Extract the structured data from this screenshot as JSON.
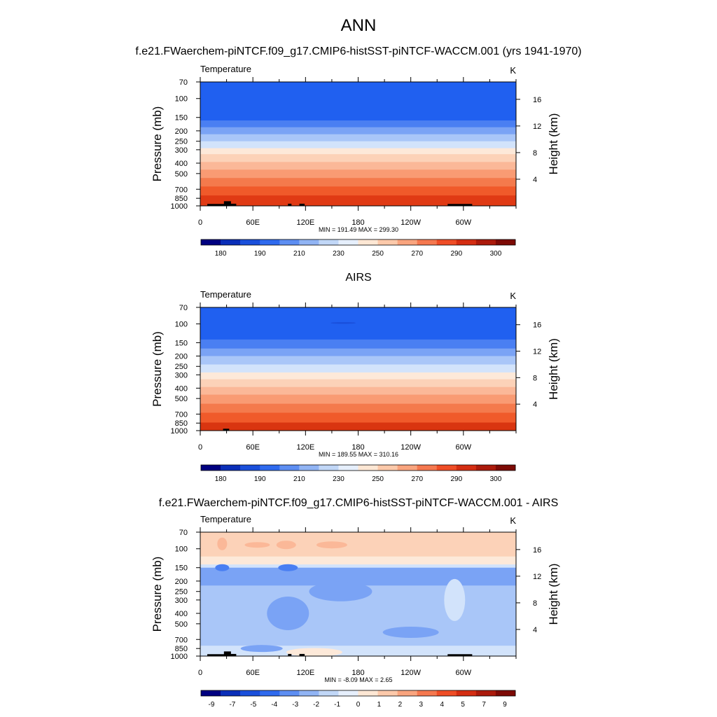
{
  "page_title": "ANN",
  "chart_data": [
    {
      "type": "heatmap",
      "title": "f.e21.FWaerchem-piNTCF.f09_g17.CMIP6-histSST-piNTCF-WACCM.001 (yrs 1941-1970)",
      "variable": "Temperature",
      "units": "K",
      "xlabel": "",
      "ylabel": "Pressure (mb)",
      "ylabel_right": "Height (km)",
      "x_ticks": [
        "0",
        "60E",
        "120E",
        "180",
        "120W",
        "60W"
      ],
      "x_tick_lon": [
        0,
        60,
        120,
        180,
        240,
        300
      ],
      "xlim": [
        0,
        360
      ],
      "y_ticks": [
        70,
        100,
        150,
        200,
        250,
        300,
        400,
        500,
        700,
        850,
        1000
      ],
      "ylim": [
        1000,
        70
      ],
      "height_ticks": [
        4,
        8,
        12,
        16
      ],
      "min": 191.49,
      "max": 299.3,
      "stats_label": "MIN = 191.49  MAX = 299.30",
      "colorbar_labels": [
        "180",
        "190",
        "210",
        "230",
        "250",
        "270",
        "290",
        "300"
      ],
      "colorbar_colors": [
        "#000080",
        "#0a2eb8",
        "#1a4fdb",
        "#2f6aee",
        "#5d8ef2",
        "#91b4f4",
        "#c1d7f7",
        "#e6effc",
        "#fde7d4",
        "#fcc9aa",
        "#f9a47e",
        "#f5784f",
        "#ef4d26",
        "#d42d12",
        "#ab1a0b",
        "#7d0a05"
      ],
      "bands": [
        {
          "p_top": 70,
          "p_bot": 160,
          "color": "#2060f0"
        },
        {
          "p_top": 160,
          "p_bot": 185,
          "color": "#4a7ff2"
        },
        {
          "p_top": 185,
          "p_bot": 215,
          "color": "#7aa3f5"
        },
        {
          "p_top": 215,
          "p_bot": 250,
          "color": "#a9c6f8"
        },
        {
          "p_top": 250,
          "p_bot": 290,
          "color": "#d2e3fb"
        },
        {
          "p_top": 290,
          "p_bot": 330,
          "color": "#fde9d9"
        },
        {
          "p_top": 330,
          "p_bot": 390,
          "color": "#fcd2b8"
        },
        {
          "p_top": 390,
          "p_bot": 460,
          "color": "#fbb898"
        },
        {
          "p_top": 460,
          "p_bot": 550,
          "color": "#f99b73"
        },
        {
          "p_top": 550,
          "p_bot": 660,
          "color": "#f47a4c"
        },
        {
          "p_top": 660,
          "p_bot": 800,
          "color": "#f05a2a"
        },
        {
          "p_top": 800,
          "p_bot": 1000,
          "color": "#e03a14"
        }
      ],
      "topography": [
        {
          "lon_start": 8,
          "lon_end": 40,
          "p": 960
        },
        {
          "lon_start": 27,
          "lon_end": 35,
          "p": 905
        },
        {
          "lon_start": 35,
          "lon_end": 41,
          "p": 955
        },
        {
          "lon_start": 100,
          "lon_end": 104,
          "p": 955
        },
        {
          "lon_start": 113,
          "lon_end": 119,
          "p": 955
        },
        {
          "lon_start": 282,
          "lon_end": 310,
          "p": 960
        }
      ]
    },
    {
      "type": "heatmap",
      "title": "AIRS",
      "variable": "Temperature",
      "units": "K",
      "xlabel": "",
      "ylabel": "Pressure (mb)",
      "ylabel_right": "Height (km)",
      "x_ticks": [
        "0",
        "60E",
        "120E",
        "180",
        "120W",
        "60W"
      ],
      "x_tick_lon": [
        0,
        60,
        120,
        180,
        240,
        300
      ],
      "xlim": [
        0,
        360
      ],
      "y_ticks": [
        70,
        100,
        150,
        200,
        250,
        300,
        400,
        500,
        700,
        850,
        1000
      ],
      "ylim": [
        1000,
        70
      ],
      "height_ticks": [
        4,
        8,
        12,
        16
      ],
      "min": 189.55,
      "max": 310.16,
      "stats_label": "MIN = 189.55  MAX = 310.16",
      "colorbar_labels": [
        "180",
        "190",
        "210",
        "230",
        "250",
        "270",
        "290",
        "300"
      ],
      "colorbar_colors": [
        "#000080",
        "#0a2eb8",
        "#1a4fdb",
        "#2f6aee",
        "#5d8ef2",
        "#91b4f4",
        "#c1d7f7",
        "#e6effc",
        "#fde7d4",
        "#fcc9aa",
        "#f9a47e",
        "#f5784f",
        "#ef4d26",
        "#d42d12",
        "#ab1a0b",
        "#7d0a05"
      ],
      "bands": [
        {
          "p_top": 70,
          "p_bot": 140,
          "color": "#2060f0"
        },
        {
          "p_top": 140,
          "p_bot": 170,
          "color": "#4a7ff2"
        },
        {
          "p_top": 170,
          "p_bot": 200,
          "color": "#7aa3f5"
        },
        {
          "p_top": 200,
          "p_bot": 240,
          "color": "#a9c6f8"
        },
        {
          "p_top": 240,
          "p_bot": 285,
          "color": "#d2e3fb"
        },
        {
          "p_top": 285,
          "p_bot": 330,
          "color": "#fde9d9"
        },
        {
          "p_top": 330,
          "p_bot": 390,
          "color": "#fcd2b8"
        },
        {
          "p_top": 390,
          "p_bot": 460,
          "color": "#fbb898"
        },
        {
          "p_top": 460,
          "p_bot": 560,
          "color": "#f99b73"
        },
        {
          "p_top": 560,
          "p_bot": 680,
          "color": "#f47a4c"
        },
        {
          "p_top": 680,
          "p_bot": 840,
          "color": "#f05a2a"
        },
        {
          "p_top": 840,
          "p_bot": 1000,
          "color": "#d93510"
        }
      ],
      "topography": [
        {
          "lon_start": 26,
          "lon_end": 33,
          "p": 960
        }
      ]
    },
    {
      "type": "heatmap",
      "title": "f.e21.FWaerchem-piNTCF.f09_g17.CMIP6-histSST-piNTCF-WACCM.001 - AIRS",
      "variable": "Temperature",
      "units": "K",
      "xlabel": "",
      "ylabel": "Pressure (mb)",
      "ylabel_right": "Height (km)",
      "x_ticks": [
        "0",
        "60E",
        "120E",
        "180",
        "120W",
        "60W"
      ],
      "x_tick_lon": [
        0,
        60,
        120,
        180,
        240,
        300
      ],
      "xlim": [
        0,
        360
      ],
      "y_ticks": [
        70,
        100,
        150,
        200,
        250,
        300,
        400,
        500,
        700,
        850,
        1000
      ],
      "ylim": [
        1000,
        70
      ],
      "height_ticks": [
        4,
        8,
        12,
        16
      ],
      "min": -8.09,
      "max": 2.65,
      "stats_label": "MIN =  -8.09  MAX =   2.65",
      "colorbar_labels": [
        "-9",
        "-7",
        "-5",
        "-4",
        "-3",
        "-2",
        "-1",
        "0",
        "1",
        "2",
        "3",
        "4",
        "5",
        "7",
        "9"
      ],
      "colorbar_colors": [
        "#000080",
        "#0a2eb8",
        "#1a4fdb",
        "#2f6aee",
        "#5d8ef2",
        "#91b4f4",
        "#c1d7f7",
        "#e6effc",
        "#fde7d4",
        "#fcc9aa",
        "#f9a47e",
        "#f5784f",
        "#ef4d26",
        "#d42d12",
        "#ab1a0b",
        "#7d0a05"
      ],
      "bands": [
        {
          "p_top": 70,
          "p_bot": 118,
          "color": "#fcd2b8"
        },
        {
          "p_top": 118,
          "p_bot": 140,
          "color": "#fde9d9"
        },
        {
          "p_top": 140,
          "p_bot": 150,
          "color": "#d2e3fb"
        },
        {
          "p_top": 150,
          "p_bot": 220,
          "color": "#7aa3f5"
        },
        {
          "p_top": 220,
          "p_bot": 800,
          "color": "#a9c6f8"
        },
        {
          "p_top": 800,
          "p_bot": 1000,
          "color": "#d2e3fb"
        }
      ],
      "topography": [
        {
          "lon_start": 8,
          "lon_end": 40,
          "p": 960
        },
        {
          "lon_start": 27,
          "lon_end": 35,
          "p": 905
        },
        {
          "lon_start": 35,
          "lon_end": 41,
          "p": 955
        },
        {
          "lon_start": 100,
          "lon_end": 104,
          "p": 955
        },
        {
          "lon_start": 113,
          "lon_end": 119,
          "p": 955
        },
        {
          "lon_start": 282,
          "lon_end": 310,
          "p": 960
        }
      ]
    }
  ]
}
